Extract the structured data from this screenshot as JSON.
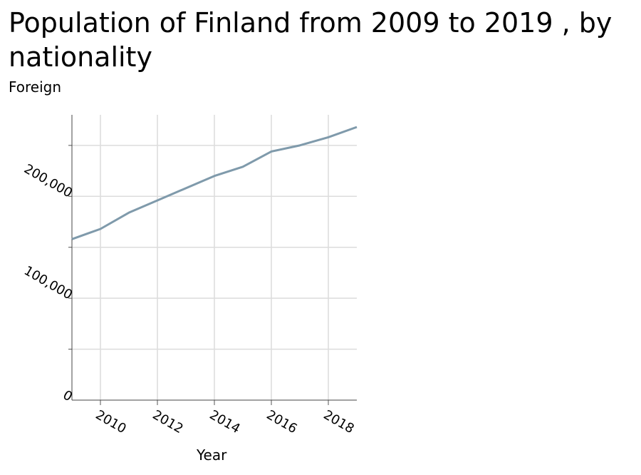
{
  "chart_data": {
    "type": "line",
    "title": "Population of Finland from 2009 to 2019 , by nationality",
    "ylabel": "Foreign",
    "xlabel": "Year",
    "xlim": [
      2009,
      2019
    ],
    "ylim": [
      0,
      280000
    ],
    "grid": true,
    "x_ticks": [
      2010,
      2012,
      2014,
      2016,
      2018
    ],
    "x_tick_labels": [
      "2010",
      "2012",
      "2014",
      "2016",
      "2018"
    ],
    "y_ticks": [
      0,
      100000,
      200000
    ],
    "y_tick_labels": [
      "0",
      "100,000",
      "200,000"
    ],
    "series_color": "#7f9aab",
    "series": [
      {
        "x": [
          2009,
          2010,
          2011,
          2012,
          2013,
          2014,
          2015,
          2016,
          2017,
          2018,
          2019
        ],
        "values": [
          158000,
          168000,
          184000,
          196000,
          208000,
          220000,
          229000,
          244000,
          250000,
          258000,
          268000
        ]
      }
    ]
  }
}
